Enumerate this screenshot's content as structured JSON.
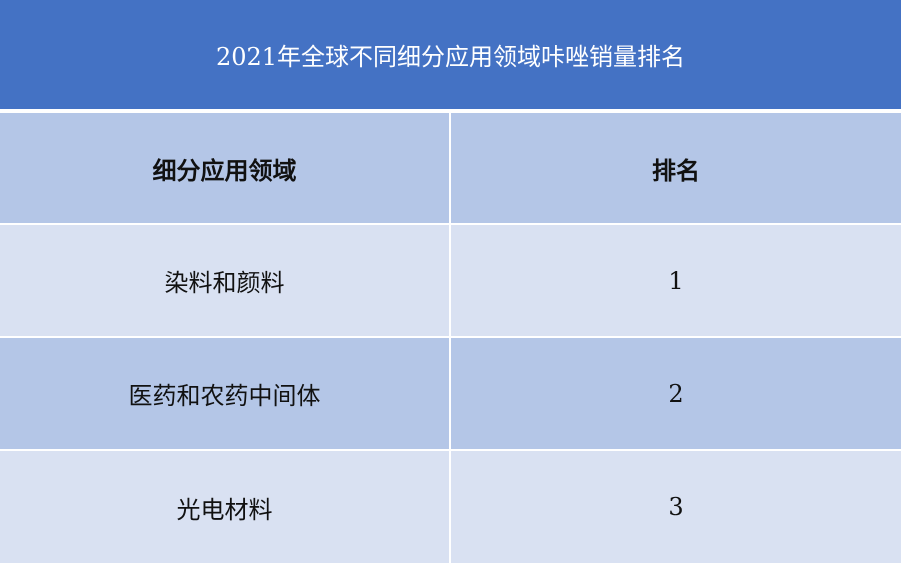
{
  "title": "2021年全球不同细分应用领域咔唑销量排名",
  "columns": [
    "细分应用领域",
    "排名"
  ],
  "rows": [
    {
      "field": "染料和颜料",
      "rank": "1"
    },
    {
      "field": "医药和农药中间体",
      "rank": "2"
    },
    {
      "field": "光电材料",
      "rank": "3"
    }
  ],
  "colors": {
    "title_bg": "#4472C4",
    "header_bg": "#B4C6E7",
    "row_light": "#D9E1F2",
    "row_dark": "#B4C6E7"
  }
}
